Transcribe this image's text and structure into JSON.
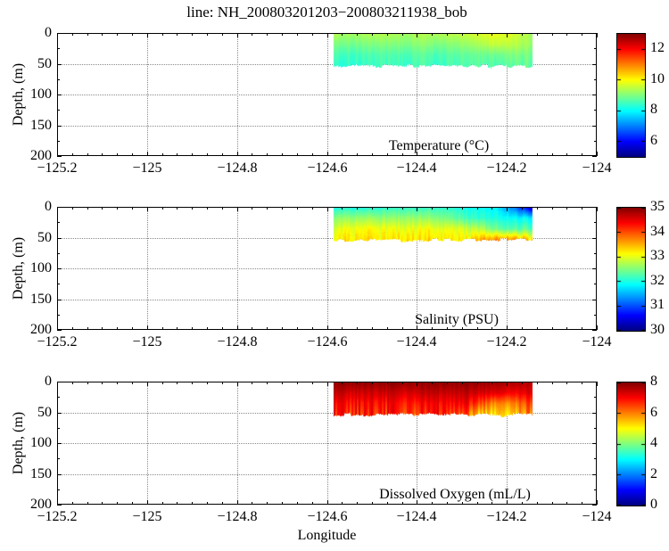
{
  "figure": {
    "title": "line: NH_200803201203−200803211938_bob",
    "xlabel": "Longitude",
    "ylabel": "Depth, (m)",
    "background": "#ffffff",
    "colormap": "jet",
    "grid_style": "dotted"
  },
  "chart_data": [
    {
      "type": "heatmap",
      "label": "Temperature (°C)",
      "xlim": [
        -125.2,
        -124
      ],
      "ylim": [
        0,
        200
      ],
      "xticks": [
        -125.2,
        -125,
        -124.8,
        -124.6,
        -124.4,
        -124.2,
        -124
      ],
      "xtick_labels": [
        "−125.2",
        "−125",
        "−124.8",
        "−124.6",
        "−124.4",
        "−124.2",
        "−124"
      ],
      "yticks": [
        0,
        50,
        100,
        150,
        200
      ],
      "ytick_labels": [
        "0",
        "50",
        "100",
        "150",
        "200"
      ],
      "yminor": [
        25,
        75,
        125,
        175
      ],
      "grid": true,
      "colorbar": {
        "min": 5,
        "max": 13,
        "ticks": [
          12,
          10,
          8,
          6
        ],
        "tick_labels": [
          "12",
          "10",
          "8",
          "6"
        ]
      },
      "data": {
        "lon_range": [
          -124.585,
          -124.145
        ],
        "depth_range": [
          0,
          58
        ],
        "grid_lons": [
          -124.585,
          -124.545,
          -124.505,
          -124.465,
          -124.425,
          -124.385,
          -124.345,
          -124.305,
          -124.265,
          -124.225,
          -124.185,
          -124.145
        ],
        "grid_depths": [
          0,
          18,
          36,
          58
        ],
        "values": [
          [
            9.4,
            9.3,
            9.4,
            9.4,
            9.3,
            9.4,
            9.4,
            9.5,
            9.7,
            9.9,
            9.7,
            9.3
          ],
          [
            9.0,
            8.9,
            9.0,
            9.0,
            9.0,
            9.1,
            9.0,
            9.1,
            9.3,
            9.6,
            9.5,
            9.2
          ],
          [
            8.6,
            8.5,
            8.6,
            8.6,
            8.6,
            8.7,
            8.6,
            8.7,
            8.8,
            8.9,
            9.0,
            8.9
          ],
          [
            8.3,
            8.3,
            8.4,
            8.4,
            8.4,
            8.5,
            8.4,
            8.5,
            8.6,
            8.6,
            8.7,
            8.7
          ]
        ]
      }
    },
    {
      "type": "heatmap",
      "label": "Salinity (PSU)",
      "xlim": [
        -125.2,
        -124
      ],
      "ylim": [
        0,
        200
      ],
      "xticks": [
        -125.2,
        -125,
        -124.8,
        -124.6,
        -124.4,
        -124.2,
        -124
      ],
      "xtick_labels": [
        "−125.2",
        "−125",
        "−124.8",
        "−124.6",
        "−124.4",
        "−124.2",
        "−124"
      ],
      "yticks": [
        0,
        50,
        100,
        150,
        200
      ],
      "ytick_labels": [
        "0",
        "50",
        "100",
        "150",
        "200"
      ],
      "yminor": [
        25,
        75,
        125,
        175
      ],
      "grid": true,
      "colorbar": {
        "min": 30,
        "max": 35,
        "ticks": [
          35,
          34,
          33,
          32,
          31,
          30
        ],
        "tick_labels": [
          "35",
          "34",
          "33",
          "32",
          "31",
          "30"
        ]
      },
      "data": {
        "lon_range": [
          -124.585,
          -124.145
        ],
        "depth_range": [
          0,
          58
        ],
        "grid_lons": [
          -124.585,
          -124.545,
          -124.505,
          -124.465,
          -124.425,
          -124.385,
          -124.345,
          -124.305,
          -124.265,
          -124.225,
          -124.185,
          -124.145
        ],
        "grid_depths": [
          0,
          18,
          36,
          58
        ],
        "values": [
          [
            32.0,
            32.0,
            32.0,
            32.1,
            32.1,
            32.1,
            32.1,
            32.0,
            31.9,
            31.8,
            31.2,
            30.3
          ],
          [
            32.6,
            32.6,
            32.6,
            32.6,
            32.6,
            32.6,
            32.5,
            32.3,
            32.1,
            32.0,
            31.9,
            31.8
          ],
          [
            33.0,
            33.1,
            33.1,
            33.1,
            33.0,
            33.1,
            33.0,
            33.0,
            32.8,
            32.4,
            32.3,
            32.3
          ],
          [
            33.3,
            33.3,
            33.3,
            33.3,
            33.3,
            33.3,
            33.3,
            33.2,
            33.6,
            34.0,
            34.1,
            33.6
          ]
        ]
      }
    },
    {
      "type": "heatmap",
      "label": "Dissolved Oxygen (mL/L)",
      "xlim": [
        -125.2,
        -124
      ],
      "ylim": [
        0,
        200
      ],
      "xticks": [
        -125.2,
        -125,
        -124.8,
        -124.6,
        -124.4,
        -124.2,
        -124
      ],
      "xtick_labels": [
        "−125.2",
        "−125",
        "−124.8",
        "−124.6",
        "−124.4",
        "−124.2",
        "−124"
      ],
      "yticks": [
        0,
        50,
        100,
        150,
        200
      ],
      "ytick_labels": [
        "0",
        "50",
        "100",
        "150",
        "200"
      ],
      "yminor": [
        25,
        75,
        125,
        175
      ],
      "grid": true,
      "colorbar": {
        "min": 0,
        "max": 8,
        "ticks": [
          8,
          6,
          4,
          2,
          0
        ],
        "tick_labels": [
          "8",
          "6",
          "4",
          "2",
          "0"
        ]
      },
      "data": {
        "lon_range": [
          -124.585,
          -124.145
        ],
        "depth_range": [
          0,
          58
        ],
        "grid_lons": [
          -124.585,
          -124.545,
          -124.505,
          -124.465,
          -124.425,
          -124.385,
          -124.345,
          -124.305,
          -124.265,
          -124.225,
          -124.185,
          -124.145
        ],
        "grid_depths": [
          0,
          18,
          36,
          58
        ],
        "values": [
          [
            7.9,
            7.9,
            7.9,
            7.9,
            7.9,
            7.9,
            7.9,
            7.9,
            7.9,
            7.8,
            7.7,
            7.6
          ],
          [
            7.5,
            7.3,
            7.4,
            7.4,
            7.3,
            7.5,
            7.4,
            7.5,
            7.4,
            7.2,
            7.0,
            7.3
          ],
          [
            7.0,
            6.8,
            7.0,
            6.9,
            6.8,
            7.0,
            6.9,
            7.1,
            6.6,
            5.8,
            5.9,
            6.6
          ],
          [
            6.7,
            6.4,
            6.8,
            6.6,
            6.5,
            6.7,
            6.6,
            6.4,
            5.3,
            4.9,
            5.1,
            6.0
          ]
        ]
      }
    }
  ]
}
